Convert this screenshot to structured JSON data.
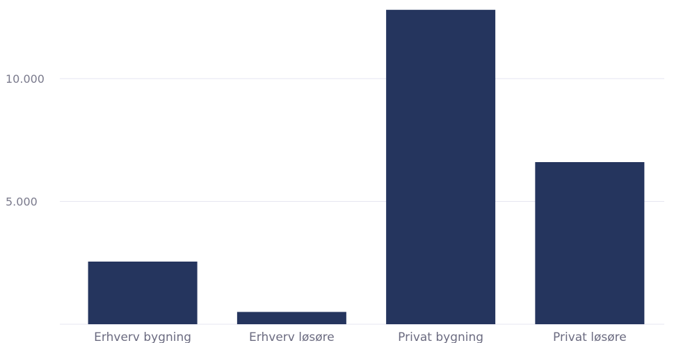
{
  "chart_data": {
    "type": "bar",
    "categories": [
      "Erhverv bygning",
      "Erhverv løsøre",
      "Privat bygning",
      "Privat løsøre"
    ],
    "values": [
      2550,
      500,
      12800,
      6600
    ],
    "ylim": [
      0,
      13200
    ],
    "yticks": [
      5000,
      10000
    ],
    "ytick_labels": [
      "5.000",
      "10.000"
    ],
    "grid": true,
    "bar_color": "#25355e",
    "grid_color": "#e6e6f0",
    "title": "",
    "xlabel": "",
    "ylabel": ""
  }
}
